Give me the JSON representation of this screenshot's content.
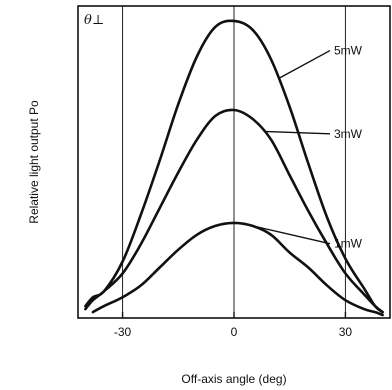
{
  "chart_data": {
    "type": "line",
    "corner_label": "θ⊥",
    "xlabel": "Off-axis angle (deg)",
    "ylabel": "Relative light output Po",
    "xlim": [
      -42,
      42
    ],
    "ylim": [
      0,
      1.05
    ],
    "x_ticks": [
      -30,
      0,
      30
    ],
    "x_tick_labels": [
      "-30",
      "0",
      "30"
    ],
    "grid_x": [
      -30,
      0,
      30
    ],
    "series": [
      {
        "name": "5mW",
        "x": [
          -40,
          -38,
          -35,
          -30,
          -25,
          -20,
          -15,
          -10,
          -5,
          0,
          5,
          10,
          15,
          20,
          25,
          30,
          35,
          38,
          40
        ],
        "y": [
          0.04,
          0.07,
          0.09,
          0.19,
          0.35,
          0.53,
          0.72,
          0.88,
          0.98,
          1.0,
          0.97,
          0.87,
          0.71,
          0.52,
          0.34,
          0.2,
          0.1,
          0.04,
          0.02
        ]
      },
      {
        "name": "3mW",
        "x": [
          -40,
          -38,
          -35,
          -30,
          -25,
          -20,
          -15,
          -10,
          -5,
          0,
          5,
          10,
          15,
          20,
          25,
          30,
          35,
          38,
          40
        ],
        "y": [
          0.03,
          0.06,
          0.09,
          0.15,
          0.25,
          0.37,
          0.49,
          0.6,
          0.68,
          0.7,
          0.67,
          0.6,
          0.48,
          0.36,
          0.25,
          0.15,
          0.08,
          0.04,
          0.02
        ]
      },
      {
        "name": "1mW",
        "x": [
          -38,
          -35,
          -30,
          -25,
          -20,
          -15,
          -10,
          -5,
          0,
          5,
          10,
          15,
          20,
          25,
          30,
          35,
          38,
          40
        ],
        "y": [
          0.02,
          0.04,
          0.07,
          0.11,
          0.17,
          0.23,
          0.28,
          0.31,
          0.32,
          0.31,
          0.28,
          0.22,
          0.17,
          0.11,
          0.06,
          0.03,
          0.02,
          0.01
        ]
      }
    ]
  }
}
